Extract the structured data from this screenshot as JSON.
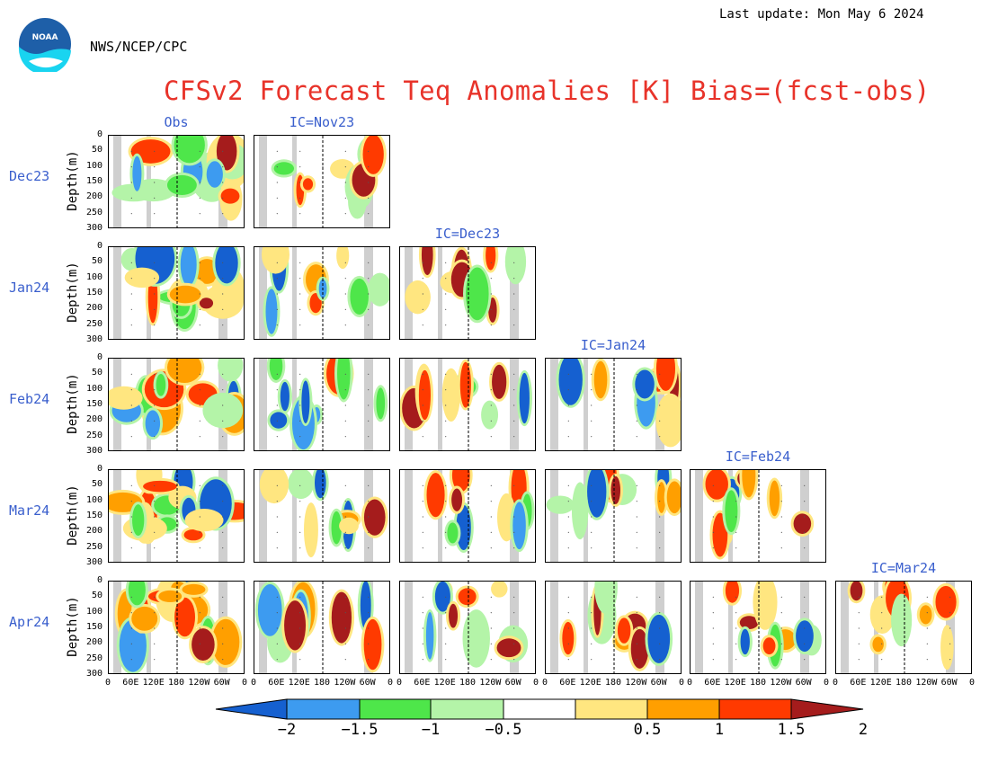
{
  "header": {
    "last_update": "Last update: Mon May 6 2024",
    "org": "NWS/NCEP/CPC",
    "title": "CFSv2 Forecast Teq Anomalies [K] Bias=(fcst-obs)",
    "logo_text": "NOAA"
  },
  "chart_data": {
    "type": "heatmap",
    "title": "CFSv2 Forecast Teq Anomalies [K] Bias=(fcst-obs)",
    "ylabel": "Depth(m)",
    "ylim": [
      300,
      0
    ],
    "yticks": [
      "0",
      "50",
      "100",
      "150",
      "200",
      "250",
      "300"
    ],
    "xticks": [
      "0",
      "60E",
      "120E",
      "180",
      "120W",
      "60W",
      "0"
    ],
    "columns": [
      "Obs",
      "IC=Nov23",
      "IC=Dec23",
      "IC=Jan24",
      "IC=Feb24",
      "IC=Mar24"
    ],
    "rows": [
      "Dec23",
      "Jan24",
      "Feb24",
      "Mar24",
      "Apr24"
    ],
    "colorbar": {
      "ticks": [
        "−2",
        "−1.5",
        "−1",
        "−0.5",
        "0.5",
        "1",
        "1.5",
        "2"
      ],
      "colors": [
        "#1560d0",
        "#3d9bf0",
        "#4ee64a",
        "#b4f4a8",
        "#ffffff",
        "#ffe680",
        "#ff9f00",
        "#ff3a00",
        "#a51c1c"
      ]
    }
  }
}
